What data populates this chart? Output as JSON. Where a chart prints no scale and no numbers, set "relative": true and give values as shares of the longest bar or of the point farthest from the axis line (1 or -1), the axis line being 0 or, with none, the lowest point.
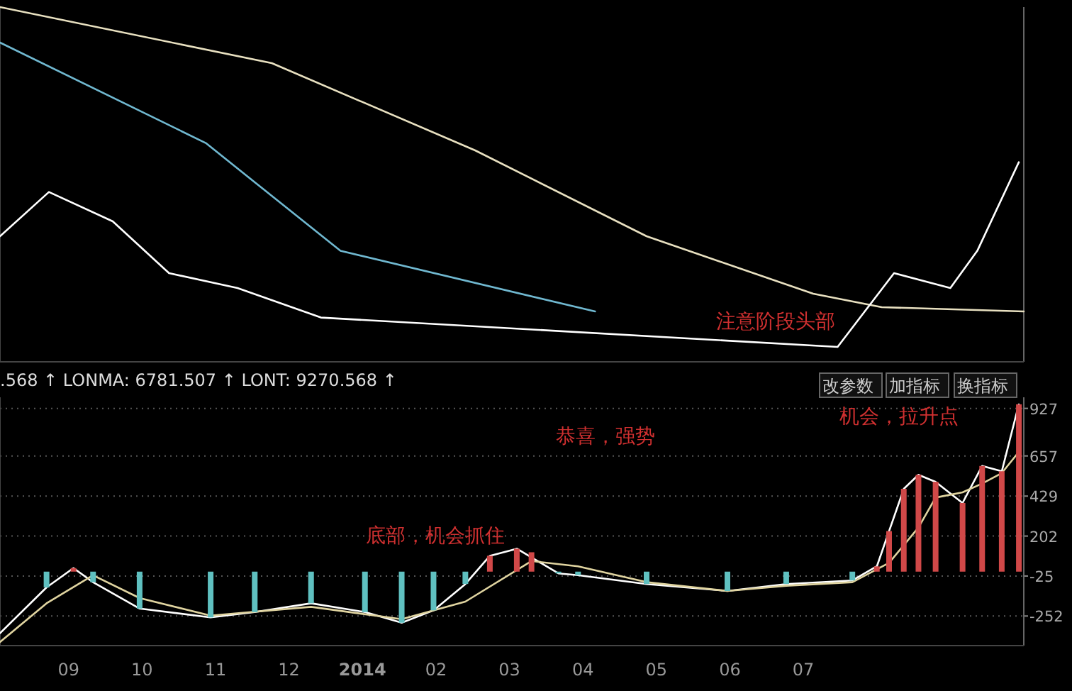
{
  "chart_data": [
    {
      "type": "line",
      "relative": true,
      "xlim": [
        "2013-08-03",
        "2014-10-01"
      ],
      "annotations": [
        "注意阶段头部"
      ],
      "series": [
        {
          "color": "#e8e0c0",
          "x": [
            "2013-08-03",
            "2013-11-24",
            "2014-02-17",
            "2014-04-27",
            "2014-07-05",
            "2014-08-03",
            "2014-10-01"
          ],
          "values": [
            1.0,
            0.842,
            0.596,
            0.354,
            0.192,
            0.154,
            0.142
          ]
        },
        {
          "color": "#70b8d0",
          "x": [
            "2013-08-03",
            "2013-10-27",
            "2013-12-22",
            "2014-04-06"
          ],
          "values": [
            0.9,
            0.617,
            0.313,
            0.142
          ]
        },
        {
          "color": "#ffffff",
          "x": [
            "2013-08-03",
            "2013-08-23",
            "2013-09-19",
            "2013-10-12",
            "2013-11-10",
            "2013-12-14",
            "2014-07-15",
            "2014-08-08",
            "2014-08-31",
            "2014-09-12",
            "2014-09-29"
          ],
          "values": [
            0.354,
            0.479,
            0.396,
            0.25,
            0.208,
            0.125,
            0.042,
            0.25,
            0.208,
            0.313,
            0.563
          ]
        }
      ]
    },
    {
      "type": "bar",
      "xlim": [
        "2013-08-03",
        "2014-10-01"
      ],
      "ylim": [
        -420,
        990
      ],
      "yticks": [
        927,
        657,
        429,
        202,
        -25,
        -252
      ],
      "grid": "y",
      "xticks": [
        {
          "value": "2013-09-01",
          "label": "09"
        },
        {
          "value": "2013-10-01",
          "label": "10"
        },
        {
          "value": "2013-11-01",
          "label": "11"
        },
        {
          "value": "2013-12-01",
          "label": "12"
        },
        {
          "value": "2014-01-01",
          "label": "2014"
        },
        {
          "value": "2014-02-01",
          "label": "02"
        },
        {
          "value": "2014-03-01",
          "label": "03"
        },
        {
          "value": "2014-04-01",
          "label": "04"
        },
        {
          "value": "2014-05-01",
          "label": "05"
        },
        {
          "value": "2014-06-01",
          "label": "06"
        },
        {
          "value": "2014-07-01",
          "label": "07"
        }
      ],
      "annotations": [
        ".568 ↑ LONMA: 6781.507 ↑ LONT: 9270.568 ↑",
        "改参数",
        "加指标",
        "换指标",
        "恭喜，强势",
        "机会，拉升点",
        "底部，机会抓住"
      ],
      "series": [
        {
          "x": [
            "2013-08-22",
            "2013-09-03",
            "2013-09-11",
            "2013-09-30",
            "2013-10-29",
            "2013-11-17",
            "2013-12-10",
            "2014-01-02",
            "2014-01-17",
            "2014-01-30",
            "2014-02-13",
            "2014-02-23",
            "2014-03-04",
            "2014-03-10",
            "2014-03-21",
            "2014-03-29",
            "2014-04-27",
            "2014-05-30",
            "2014-06-24",
            "2014-07-21",
            "2014-07-31",
            "2014-08-06",
            "2014-08-12",
            "2014-08-18",
            "2014-08-25",
            "2014-09-06",
            "2014-09-14",
            "2014-09-22",
            "2014-09-29"
          ],
          "values": [
            -90,
            20,
            -60,
            -210,
            -260,
            -230,
            -180,
            -230,
            -290,
            -220,
            -70,
            90,
            130,
            110,
            -10,
            -20,
            -70,
            -110,
            -70,
            -50,
            30,
            230,
            470,
            550,
            510,
            390,
            600,
            570,
            950
          ],
          "colors": [
            "#5fc0c0",
            "#d04848",
            "#5fc0c0",
            "#5fc0c0",
            "#5fc0c0",
            "#5fc0c0",
            "#5fc0c0",
            "#5fc0c0",
            "#5fc0c0",
            "#5fc0c0",
            "#5fc0c0",
            "#d04848",
            "#d04848",
            "#d04848",
            "#5fc0c0",
            "#5fc0c0",
            "#5fc0c0",
            "#5fc0c0",
            "#5fc0c0",
            "#5fc0c0",
            "#d04848",
            "#d04848",
            "#d04848",
            "#d04848",
            "#d04848",
            "#d04848",
            "#d04848",
            "#d04848",
            "#d04848"
          ]
        },
        {
          "type": "line",
          "color": "#ffffff",
          "x": [
            "2013-08-03",
            "2013-08-22",
            "2013-09-03",
            "2013-09-11",
            "2013-09-30",
            "2013-10-29",
            "2013-11-17",
            "2013-12-10",
            "2014-01-02",
            "2014-01-17",
            "2014-01-30",
            "2014-02-13",
            "2014-02-23",
            "2014-03-04",
            "2014-03-21",
            "2014-03-29",
            "2014-04-27",
            "2014-05-30",
            "2014-06-24",
            "2014-07-21",
            "2014-07-31",
            "2014-08-06",
            "2014-08-12",
            "2014-08-18",
            "2014-08-25",
            "2014-09-06",
            "2014-09-14",
            "2014-09-22",
            "2014-09-29"
          ],
          "values": [
            -350,
            -90,
            20,
            -60,
            -210,
            -260,
            -230,
            -180,
            -230,
            -290,
            -220,
            -70,
            90,
            130,
            -10,
            -20,
            -70,
            -110,
            -70,
            -50,
            30,
            230,
            470,
            550,
            510,
            390,
            600,
            570,
            950
          ]
        },
        {
          "type": "line",
          "color": "#e0d4a0",
          "x": [
            "2013-08-03",
            "2013-08-22",
            "2013-09-11",
            "2013-09-30",
            "2013-10-29",
            "2013-12-10",
            "2014-01-17",
            "2014-02-13",
            "2014-03-10",
            "2014-03-29",
            "2014-04-27",
            "2014-05-30",
            "2014-06-24",
            "2014-07-21",
            "2014-08-06",
            "2014-08-18",
            "2014-08-25",
            "2014-09-06",
            "2014-09-14",
            "2014-09-22",
            "2014-09-29"
          ],
          "values": [
            -400,
            -180,
            -20,
            -150,
            -250,
            -200,
            -270,
            -170,
            60,
            30,
            -60,
            -110,
            -80,
            -60,
            50,
            250,
            420,
            450,
            500,
            560,
            680
          ]
        }
      ]
    }
  ]
}
